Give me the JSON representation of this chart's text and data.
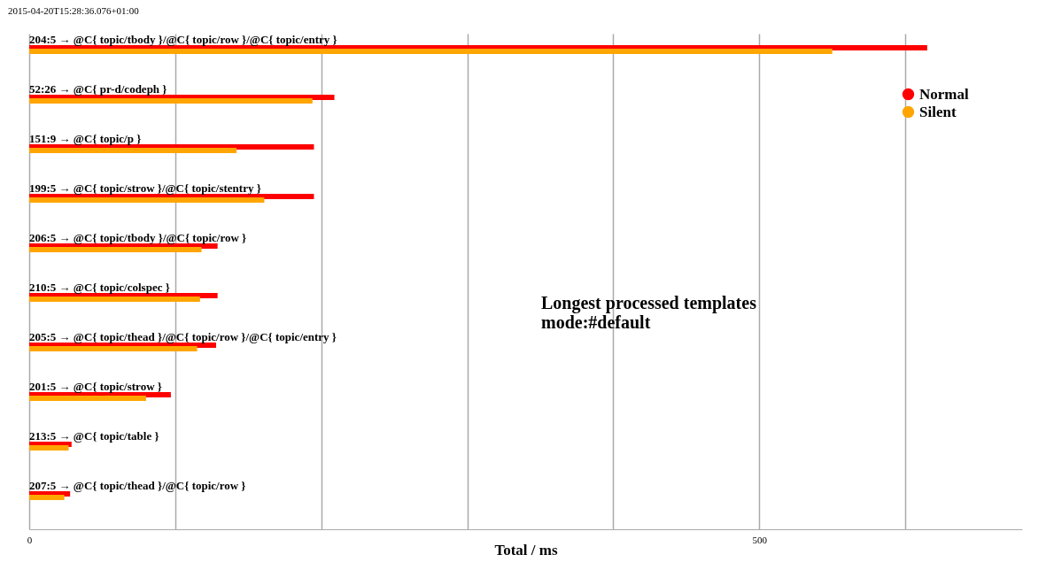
{
  "chart_data": {
    "type": "bar",
    "orientation": "horizontal",
    "title": "Longest processed templates\nmode:#default",
    "xlabel": "Total / ms",
    "annotations": [
      "2015-04-20T15:28:36.076+01:00"
    ],
    "categories": [
      "204:5 → @C{ topic/tbody }/@C{ topic/row }/@C{ topic/entry }",
      "52:26 → @C{ pr-d/codeph }",
      "151:9 → @C{ topic/p }",
      "199:5 → @C{ topic/strow }/@C{ topic/stentry }",
      "206:5 → @C{ topic/tbody }/@C{ topic/row }",
      "210:5 → @C{ topic/colspec }",
      "205:5 → @C{ topic/thead }/@C{ topic/row }/@C{ topic/entry }",
      "201:5 → @C{ topic/strow }",
      "213:5 → @C{ topic/table }",
      "207:5 → @C{ topic/thead }/@C{ topic/row }"
    ],
    "series": [
      {
        "name": "Normal",
        "color": "#ff0000",
        "values": [
          615,
          209,
          195,
          195,
          129,
          129,
          128,
          97,
          29,
          28
        ]
      },
      {
        "name": "Silent",
        "color": "#ffa500",
        "values": [
          550,
          194,
          142,
          161,
          118,
          117,
          115,
          80,
          27,
          24
        ]
      }
    ],
    "xlim": [
      0,
      680
    ],
    "xticks": [
      0,
      {
        "value": 100,
        "label": null
      },
      {
        "value": 200,
        "label": null
      },
      {
        "value": 300,
        "label": null
      },
      {
        "value": 400,
        "label": null
      },
      500,
      {
        "value": 600,
        "label": null
      }
    ],
    "grid": "x",
    "legend": "top right",
    "marker": "circle"
  }
}
